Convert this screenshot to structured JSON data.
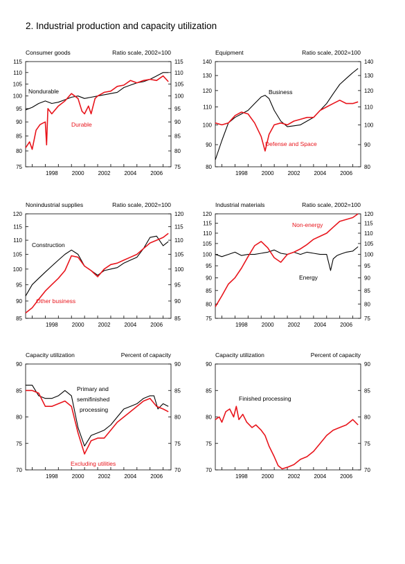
{
  "page": {
    "title": "2.  Industrial production and capacity utilization"
  },
  "colors": {
    "black_series": "#000000",
    "red_series": "#e8141b",
    "axis": "#000000"
  },
  "chart_data": [
    {
      "type": "line",
      "left_title": "Consumer goods",
      "right_title": "Ratio scale, 2002=100",
      "x_ticks": [
        "1998",
        "2000",
        "2002",
        "2004",
        "2006"
      ],
      "xlim": [
        1996.5,
        2007.6
      ],
      "ylim": [
        75,
        115
      ],
      "y_ticks": [
        75,
        80,
        85,
        90,
        95,
        100,
        105,
        110,
        115
      ],
      "y_scale": "ratio",
      "series": [
        {
          "name": "Nondurable",
          "color": "#000000",
          "x": [
            1996.5,
            1997.0,
            1997.5,
            1998.0,
            1998.5,
            1999.0,
            1999.5,
            2000.0,
            2000.5,
            2001.0,
            2001.5,
            2002.0,
            2002.5,
            2003.0,
            2003.5,
            2004.0,
            2004.5,
            2005.0,
            2005.5,
            2006.0,
            2006.5,
            2007.0,
            2007.4
          ],
          "y": [
            94.5,
            95.5,
            97.0,
            98.0,
            97.0,
            97.5,
            98.5,
            99.5,
            100.0,
            99.0,
            99.5,
            100.0,
            100.5,
            101.0,
            101.5,
            103.5,
            104.5,
            105.5,
            106.0,
            107.0,
            108.5,
            110.0,
            110.0
          ]
        },
        {
          "name": "Durable",
          "color": "#e8141b",
          "x": [
            1996.5,
            1996.8,
            1997.0,
            1997.3,
            1997.6,
            1997.8,
            1998.0,
            1998.1,
            1998.2,
            1998.5,
            1999.0,
            1999.5,
            2000.0,
            2000.5,
            2000.8,
            2001.0,
            2001.3,
            2001.5,
            2001.8,
            2002.0,
            2002.5,
            2003.0,
            2003.5,
            2004.0,
            2004.5,
            2005.0,
            2005.5,
            2006.0,
            2006.5,
            2007.0,
            2007.4
          ],
          "y": [
            81.0,
            83.0,
            80.5,
            87.0,
            89.0,
            89.5,
            90.0,
            82.0,
            95.0,
            93.0,
            96.0,
            98.0,
            101.0,
            99.0,
            94.0,
            93.0,
            96.0,
            93.0,
            99.0,
            100.0,
            101.5,
            102.0,
            104.0,
            104.5,
            106.5,
            105.5,
            106.5,
            107.0,
            106.5,
            108.5,
            106.0
          ]
        }
      ],
      "labels": [
        {
          "text": "Nondurable",
          "color": "#000000"
        },
        {
          "text": "Durable",
          "color": "#e8141b"
        }
      ]
    },
    {
      "type": "line",
      "left_title": "Equipment",
      "right_title": "Ratio scale, 2002=100",
      "x_ticks": [
        "1998",
        "2000",
        "2002",
        "2004",
        "2006"
      ],
      "xlim": [
        1996.5,
        2007.6
      ],
      "ylim": [
        80,
        140
      ],
      "y_ticks": [
        80,
        90,
        100,
        110,
        120,
        130,
        140
      ],
      "y_scale": "ratio",
      "series": [
        {
          "name": "Business",
          "color": "#000000",
          "x": [
            1996.5,
            1997.0,
            1997.5,
            1998.0,
            1998.5,
            1999.0,
            1999.5,
            2000.0,
            2000.3,
            2000.6,
            2001.0,
            2001.5,
            2002.0,
            2002.5,
            2003.0,
            2003.5,
            2004.0,
            2004.5,
            2005.0,
            2005.5,
            2006.0,
            2006.5,
            2007.0,
            2007.4
          ],
          "y": [
            83.0,
            92.0,
            101.0,
            104.0,
            106.0,
            108.0,
            112.0,
            116.0,
            117.0,
            115.0,
            108.0,
            102.0,
            99.0,
            99.5,
            100.0,
            102.0,
            104.0,
            108.0,
            112.0,
            118.0,
            124.0,
            128.0,
            132.0,
            135.0
          ]
        },
        {
          "name": "Defense and Space",
          "color": "#e8141b",
          "x": [
            1996.5,
            1997.0,
            1997.5,
            1998.0,
            1998.5,
            1999.0,
            1999.5,
            2000.0,
            2000.3,
            2000.6,
            2001.0,
            2001.5,
            2002.0,
            2002.5,
            2003.0,
            2003.5,
            2004.0,
            2004.5,
            2005.0,
            2005.5,
            2006.0,
            2006.5,
            2007.0,
            2007.4
          ],
          "y": [
            101.0,
            100.0,
            101.0,
            105.0,
            107.0,
            106.0,
            101.0,
            94.0,
            87.0,
            95.0,
            100.0,
            101.0,
            100.0,
            102.0,
            103.0,
            104.0,
            104.0,
            108.0,
            110.0,
            112.0,
            114.0,
            112.0,
            112.0,
            113.0
          ]
        }
      ],
      "labels": [
        {
          "text": "Business",
          "color": "#000000"
        },
        {
          "text": "Defense and Space",
          "color": "#e8141b"
        }
      ]
    },
    {
      "type": "line",
      "left_title": "Nonindustrial supplies",
      "right_title": "Ratio scale, 2002=100",
      "x_ticks": [
        "1998",
        "2000",
        "2002",
        "2004",
        "2006"
      ],
      "xlim": [
        1996.5,
        2007.6
      ],
      "ylim": [
        85,
        120
      ],
      "y_ticks": [
        85,
        90,
        95,
        100,
        105,
        110,
        115,
        120
      ],
      "y_scale": "ratio",
      "series": [
        {
          "name": "Construction",
          "color": "#000000",
          "x": [
            1996.5,
            1997.0,
            1997.5,
            1998.0,
            1998.5,
            1999.0,
            1999.5,
            2000.0,
            2000.5,
            2001.0,
            2001.5,
            2002.0,
            2002.5,
            2003.0,
            2003.5,
            2004.0,
            2004.5,
            2005.0,
            2005.5,
            2006.0,
            2006.5,
            2007.0,
            2007.4
          ],
          "y": [
            91.5,
            95.0,
            97.0,
            99.0,
            101.0,
            103.0,
            105.0,
            106.5,
            105.0,
            101.0,
            99.5,
            98.0,
            99.5,
            100.0,
            100.5,
            102.0,
            103.0,
            104.0,
            107.0,
            111.0,
            111.5,
            108.0,
            109.5
          ]
        },
        {
          "name": "Other business",
          "color": "#e8141b",
          "x": [
            1996.5,
            1997.0,
            1997.5,
            1998.0,
            1998.5,
            1999.0,
            1999.5,
            2000.0,
            2000.5,
            2001.0,
            2001.5,
            2002.0,
            2002.5,
            2003.0,
            2003.5,
            2004.0,
            2004.5,
            2005.0,
            2005.5,
            2006.0,
            2006.5,
            2007.0,
            2007.4
          ],
          "y": [
            86.5,
            88.0,
            90.5,
            93.0,
            95.0,
            97.0,
            99.5,
            104.5,
            104.0,
            101.0,
            99.5,
            97.5,
            100.0,
            101.5,
            102.0,
            103.0,
            104.0,
            105.0,
            107.0,
            109.0,
            110.0,
            111.0,
            112.5
          ]
        }
      ],
      "labels": [
        {
          "text": "Construction",
          "color": "#000000"
        },
        {
          "text": "Other business",
          "color": "#e8141b"
        }
      ]
    },
    {
      "type": "line",
      "left_title": "Industrial materials",
      "right_title": "Ratio scale, 2002=100",
      "x_ticks": [
        "1998",
        "2000",
        "2002",
        "2004",
        "2006"
      ],
      "xlim": [
        1996.5,
        2007.6
      ],
      "ylim": [
        75,
        120
      ],
      "y_ticks": [
        75,
        80,
        85,
        90,
        95,
        100,
        105,
        110,
        115,
        120
      ],
      "y_scale": "ratio",
      "series": [
        {
          "name": "Energy",
          "color": "#000000",
          "x": [
            1996.5,
            1997.0,
            1997.5,
            1998.0,
            1998.5,
            1999.0,
            1999.5,
            2000.0,
            2000.5,
            2001.0,
            2001.5,
            2002.0,
            2002.5,
            2003.0,
            2003.5,
            2004.0,
            2004.5,
            2005.0,
            2005.3,
            2005.5,
            2005.8,
            2006.0,
            2006.5,
            2007.0,
            2007.4
          ],
          "y": [
            100.0,
            99.0,
            100.0,
            101.0,
            99.5,
            100.0,
            100.0,
            100.5,
            101.0,
            102.0,
            100.5,
            100.0,
            101.0,
            100.0,
            101.0,
            100.5,
            100.0,
            100.0,
            93.0,
            98.0,
            99.5,
            100.0,
            101.0,
            101.5,
            103.5
          ]
        },
        {
          "name": "Non-energy",
          "color": "#e8141b",
          "x": [
            1996.5,
            1997.0,
            1997.5,
            1998.0,
            1998.5,
            1999.0,
            1999.5,
            2000.0,
            2000.5,
            2001.0,
            2001.5,
            2002.0,
            2002.5,
            2003.0,
            2003.5,
            2004.0,
            2004.5,
            2005.0,
            2005.5,
            2006.0,
            2006.5,
            2007.0,
            2007.4
          ],
          "y": [
            79.0,
            83.0,
            87.5,
            90.0,
            94.0,
            99.0,
            104.0,
            106.0,
            103.0,
            98.5,
            96.5,
            100.0,
            101.0,
            102.5,
            104.5,
            107.0,
            108.5,
            110.0,
            113.0,
            116.0,
            117.0,
            118.0,
            120.0
          ]
        }
      ],
      "labels": [
        {
          "text": "Non-energy",
          "color": "#e8141b"
        },
        {
          "text": "Energy",
          "color": "#000000"
        }
      ]
    },
    {
      "type": "line",
      "left_title": "Capacity utilization",
      "right_title": "Percent of capacity",
      "x_ticks": [
        "1998",
        "2000",
        "2002",
        "2004",
        "2006"
      ],
      "xlim": [
        1996.5,
        2007.6
      ],
      "ylim": [
        70,
        90
      ],
      "y_ticks": [
        70,
        75,
        80,
        85,
        90
      ],
      "y_scale": "linear",
      "series": [
        {
          "name": "Primary and semifinished processing",
          "color": "#000000",
          "x": [
            1996.5,
            1997.0,
            1997.5,
            1998.0,
            1998.5,
            1999.0,
            1999.5,
            2000.0,
            2000.5,
            2001.0,
            2001.5,
            2002.0,
            2002.5,
            2003.0,
            2003.5,
            2004.0,
            2004.5,
            2005.0,
            2005.5,
            2006.0,
            2006.3,
            2006.6,
            2007.0,
            2007.4
          ],
          "y": [
            86.0,
            86.0,
            84.0,
            83.5,
            83.5,
            84.0,
            85.0,
            84.0,
            78.0,
            74.5,
            76.5,
            77.0,
            77.5,
            78.5,
            80.0,
            81.5,
            82.0,
            82.5,
            83.5,
            84.0,
            84.0,
            81.5,
            82.5,
            82.0
          ]
        },
        {
          "name": "Excluding utilities",
          "color": "#e8141b",
          "x": [
            1996.5,
            1997.0,
            1997.5,
            1998.0,
            1998.5,
            1999.0,
            1999.5,
            2000.0,
            2000.5,
            2001.0,
            2001.5,
            2002.0,
            2002.5,
            2003.0,
            2003.5,
            2004.0,
            2004.5,
            2005.0,
            2005.5,
            2006.0,
            2006.5,
            2007.0,
            2007.4
          ],
          "y": [
            85.0,
            85.0,
            84.5,
            82.0,
            82.0,
            82.5,
            83.0,
            82.0,
            77.0,
            73.0,
            75.5,
            76.0,
            76.0,
            77.5,
            79.0,
            80.0,
            81.0,
            82.0,
            83.0,
            83.5,
            82.0,
            81.5,
            81.0
          ]
        }
      ],
      "labels": [
        {
          "text": "Primary and",
          "color": "#000000"
        },
        {
          "text": "semifinished",
          "color": "#000000"
        },
        {
          "text": "processing",
          "color": "#000000"
        },
        {
          "text": "Excluding utilities",
          "color": "#e8141b"
        }
      ]
    },
    {
      "type": "line",
      "left_title": "Capacity utilization",
      "right_title": "Percent of capacity",
      "x_ticks": [
        "1998",
        "2000",
        "2002",
        "2004",
        "2006"
      ],
      "xlim": [
        1996.5,
        2007.6
      ],
      "ylim": [
        70,
        90
      ],
      "y_ticks": [
        70,
        75,
        80,
        85,
        90
      ],
      "y_scale": "linear",
      "series": [
        {
          "name": "Finished processing",
          "color": "#e8141b",
          "x": [
            1996.5,
            1996.8,
            1997.0,
            1997.3,
            1997.6,
            1997.9,
            1998.1,
            1998.3,
            1998.6,
            1998.9,
            1999.3,
            1999.6,
            2000.0,
            2000.3,
            2000.6,
            2001.0,
            2001.3,
            2001.6,
            2002.0,
            2002.5,
            2003.0,
            2003.5,
            2004.0,
            2004.5,
            2005.0,
            2005.5,
            2006.0,
            2006.5,
            2007.0,
            2007.4
          ],
          "y": [
            79.5,
            80.0,
            79.0,
            81.0,
            81.5,
            80.0,
            82.0,
            79.5,
            80.5,
            79.0,
            78.0,
            78.5,
            77.5,
            76.5,
            74.5,
            72.5,
            70.8,
            70.2,
            70.5,
            71.0,
            72.0,
            72.5,
            73.5,
            75.0,
            76.5,
            77.5,
            78.0,
            78.5,
            79.5,
            78.5
          ]
        }
      ],
      "labels": [
        {
          "text": "Finished processing",
          "color": "#000000"
        }
      ]
    }
  ]
}
